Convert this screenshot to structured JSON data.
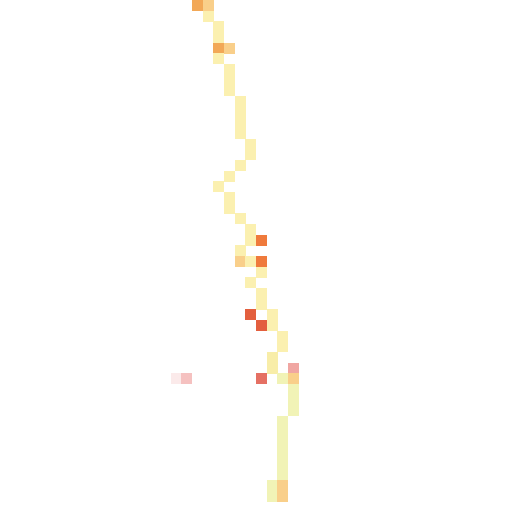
{
  "map": {
    "background": "#ffffff",
    "palette": {
      "cream": "#fbf0b0",
      "pale_yellow": "#f8eda8",
      "lime_yellow": "#f1f3b6",
      "light_orange": "#f9cf8a",
      "orange": "#f2a857",
      "deep_orange": "#ef7a3c",
      "red_orange": "#e35f3e",
      "coral": "#e57063",
      "pink": "#f0a6a2",
      "light_pink": "#f5c1c0",
      "faint_pink": "#fbeaea"
    },
    "cells": [
      {
        "row": 0,
        "col": 18,
        "color": "orange"
      },
      {
        "row": 0,
        "col": 19,
        "color": "light_orange"
      },
      {
        "row": 1,
        "col": 19,
        "color": "cream"
      },
      {
        "row": 2,
        "col": 20,
        "color": "cream"
      },
      {
        "row": 3,
        "col": 20,
        "color": "cream"
      },
      {
        "row": 4,
        "col": 20,
        "color": "orange"
      },
      {
        "row": 4,
        "col": 21,
        "color": "light_orange"
      },
      {
        "row": 5,
        "col": 20,
        "color": "cream"
      },
      {
        "row": 6,
        "col": 21,
        "color": "cream"
      },
      {
        "row": 7,
        "col": 21,
        "color": "cream"
      },
      {
        "row": 8,
        "col": 21,
        "color": "cream"
      },
      {
        "row": 9,
        "col": 22,
        "color": "cream"
      },
      {
        "row": 10,
        "col": 22,
        "color": "cream"
      },
      {
        "row": 11,
        "col": 22,
        "color": "cream"
      },
      {
        "row": 12,
        "col": 22,
        "color": "cream"
      },
      {
        "row": 13,
        "col": 23,
        "color": "cream"
      },
      {
        "row": 14,
        "col": 23,
        "color": "cream"
      },
      {
        "row": 15,
        "col": 22,
        "color": "cream"
      },
      {
        "row": 16,
        "col": 21,
        "color": "cream"
      },
      {
        "row": 17,
        "col": 20,
        "color": "cream"
      },
      {
        "row": 18,
        "col": 21,
        "color": "cream"
      },
      {
        "row": 19,
        "col": 21,
        "color": "cream"
      },
      {
        "row": 20,
        "col": 22,
        "color": "cream"
      },
      {
        "row": 21,
        "col": 23,
        "color": "cream"
      },
      {
        "row": 22,
        "col": 23,
        "color": "cream"
      },
      {
        "row": 22,
        "col": 24,
        "color": "deep_orange"
      },
      {
        "row": 23,
        "col": 22,
        "color": "cream"
      },
      {
        "row": 24,
        "col": 22,
        "color": "light_orange"
      },
      {
        "row": 24,
        "col": 23,
        "color": "cream"
      },
      {
        "row": 24,
        "col": 24,
        "color": "deep_orange"
      },
      {
        "row": 25,
        "col": 24,
        "color": "cream"
      },
      {
        "row": 26,
        "col": 23,
        "color": "cream"
      },
      {
        "row": 27,
        "col": 24,
        "color": "cream"
      },
      {
        "row": 28,
        "col": 24,
        "color": "cream"
      },
      {
        "row": 29,
        "col": 23,
        "color": "red_orange"
      },
      {
        "row": 29,
        "col": 25,
        "color": "cream"
      },
      {
        "row": 30,
        "col": 24,
        "color": "red_orange"
      },
      {
        "row": 30,
        "col": 25,
        "color": "cream"
      },
      {
        "row": 31,
        "col": 26,
        "color": "cream"
      },
      {
        "row": 32,
        "col": 26,
        "color": "cream"
      },
      {
        "row": 33,
        "col": 25,
        "color": "pale_yellow"
      },
      {
        "row": 34,
        "col": 25,
        "color": "pale_yellow"
      },
      {
        "row": 34,
        "col": 27,
        "color": "pink"
      },
      {
        "row": 35,
        "col": 16,
        "color": "faint_pink"
      },
      {
        "row": 35,
        "col": 17,
        "color": "light_pink"
      },
      {
        "row": 35,
        "col": 24,
        "color": "coral"
      },
      {
        "row": 35,
        "col": 26,
        "color": "lime_yellow"
      },
      {
        "row": 35,
        "col": 27,
        "color": "light_orange"
      },
      {
        "row": 36,
        "col": 27,
        "color": "lime_yellow"
      },
      {
        "row": 37,
        "col": 27,
        "color": "lime_yellow"
      },
      {
        "row": 38,
        "col": 27,
        "color": "lime_yellow"
      },
      {
        "row": 39,
        "col": 26,
        "color": "lime_yellow"
      },
      {
        "row": 40,
        "col": 26,
        "color": "lime_yellow"
      },
      {
        "row": 41,
        "col": 26,
        "color": "lime_yellow"
      },
      {
        "row": 42,
        "col": 26,
        "color": "lime_yellow"
      },
      {
        "row": 43,
        "col": 26,
        "color": "lime_yellow"
      },
      {
        "row": 44,
        "col": 26,
        "color": "lime_yellow"
      },
      {
        "row": 45,
        "col": 25,
        "color": "lime_yellow"
      },
      {
        "row": 45,
        "col": 26,
        "color": "light_orange"
      },
      {
        "row": 46,
        "col": 25,
        "color": "lime_yellow"
      },
      {
        "row": 46,
        "col": 26,
        "color": "light_orange"
      }
    ]
  }
}
